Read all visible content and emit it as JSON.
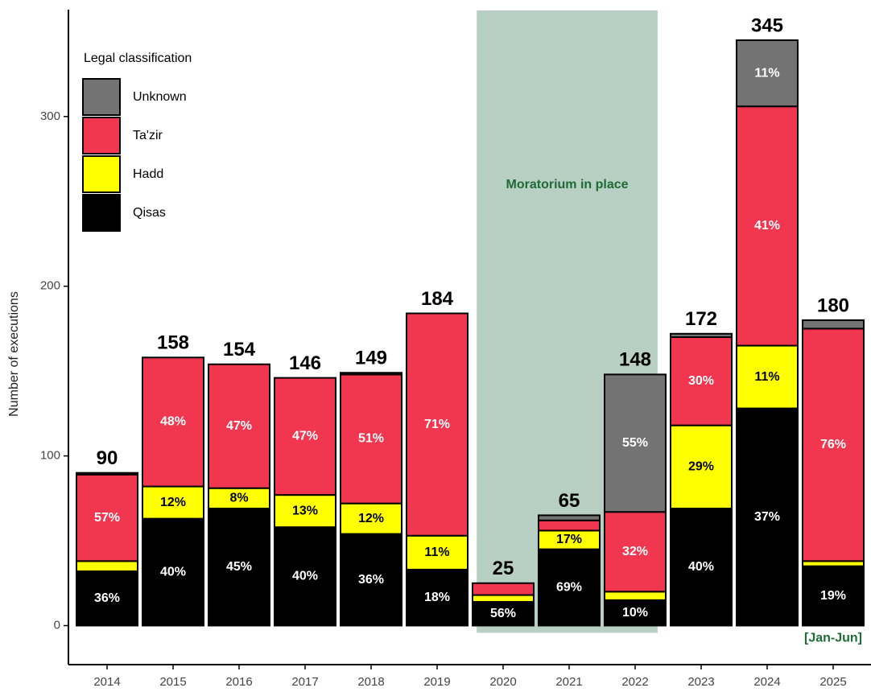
{
  "chart_data": {
    "type": "stacked_bar",
    "y_label": "Number of executions",
    "legend_title": "Legal classification",
    "categories": [
      "2014",
      "2015",
      "2016",
      "2017",
      "2018",
      "2019",
      "2020",
      "2021",
      "2022",
      "2023",
      "2024",
      "2025"
    ],
    "series": [
      {
        "name": "Qisas",
        "color": "#000000",
        "label_color": "#ffffff",
        "values": [
          32,
          63,
          69,
          58,
          54,
          33,
          14,
          45,
          15,
          69,
          128,
          35
        ],
        "labels": [
          "36%",
          "40%",
          "45%",
          "40%",
          "36%",
          "18%",
          "56%",
          "69%",
          "10%",
          "40%",
          "37%",
          "19%"
        ]
      },
      {
        "name": "Hadd",
        "color": "#ffff00",
        "label_color": "#000000",
        "values": [
          6,
          19,
          12,
          19,
          18,
          20,
          4,
          11,
          5,
          49,
          37,
          3
        ],
        "labels": [
          null,
          "12%",
          "8%",
          "13%",
          "12%",
          "11%",
          null,
          "17%",
          null,
          "29%",
          "11%",
          null
        ]
      },
      {
        "name": "Ta'zir",
        "color": "#f0374f",
        "label_color": "#ffffff",
        "values": [
          51,
          76,
          73,
          69,
          76,
          131,
          7,
          6,
          47,
          52,
          141,
          137
        ],
        "labels": [
          "57%",
          "48%",
          "47%",
          "47%",
          "51%",
          "71%",
          null,
          null,
          "32%",
          "30%",
          "41%",
          "76%"
        ]
      },
      {
        "name": "Unknown",
        "color": "#737373",
        "label_color": "#ffffff",
        "values": [
          1,
          0,
          0,
          0,
          1,
          0,
          0,
          3,
          81,
          2,
          39,
          5
        ],
        "labels": [
          null,
          null,
          null,
          null,
          null,
          null,
          null,
          null,
          "55%",
          null,
          "11%",
          null
        ]
      }
    ],
    "totals": [
      90,
      158,
      154,
      146,
      149,
      184,
      25,
      65,
      148,
      172,
      345,
      180
    ],
    "moratorium": {
      "label": "Moratorium in place",
      "start": "2020",
      "end": "2022",
      "color": "#b8cfc3"
    },
    "note": {
      "text": "[Jan-Jun]",
      "category": "2025",
      "color": "#1f6b35"
    },
    "ylim": [
      -23,
      363
    ],
    "yticks": [
      0,
      100,
      200,
      300
    ]
  }
}
